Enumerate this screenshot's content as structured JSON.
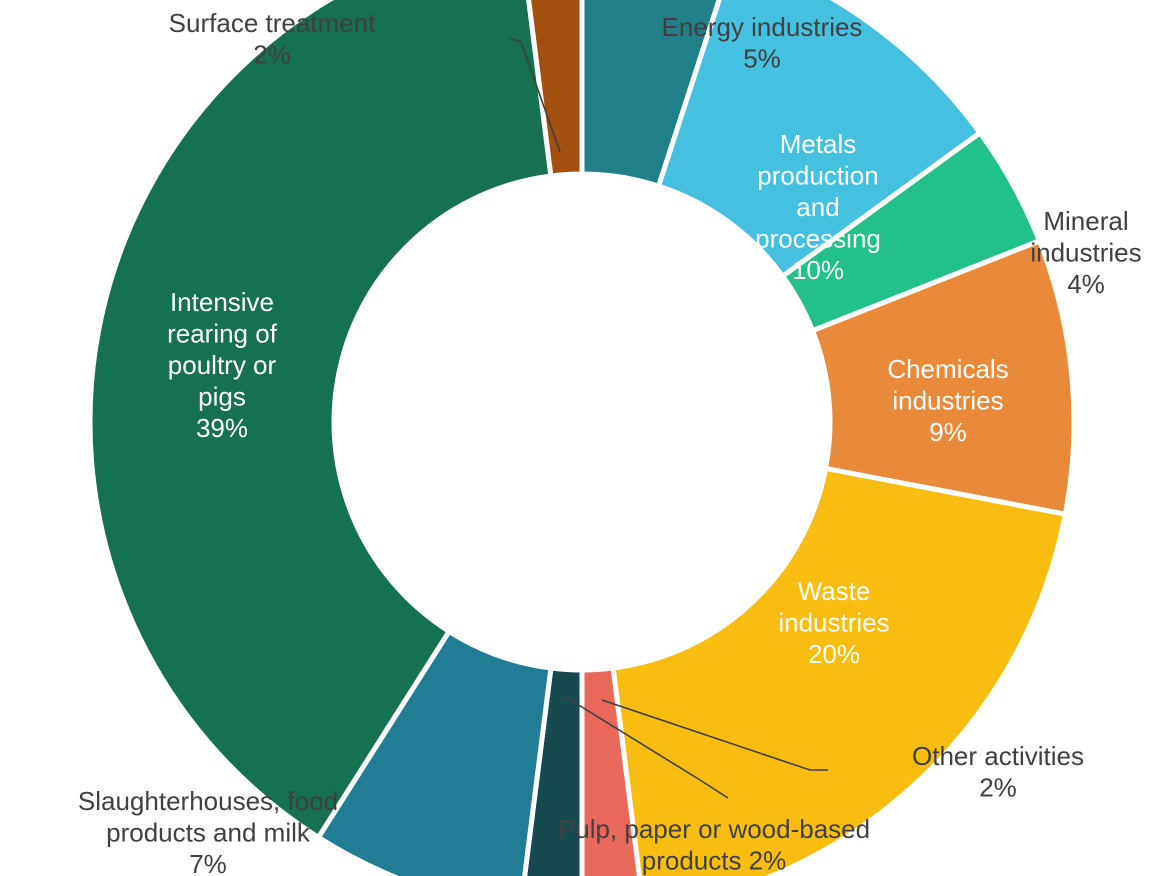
{
  "chart_data": {
    "type": "pie",
    "variant": "donut",
    "title": "",
    "legend": "none",
    "categories": [
      "Energy industries",
      "Metals production and processing",
      "Mineral industries",
      "Chemicals industries",
      "Waste industries",
      "Other activities",
      "Pulp, paper or wood-based products",
      "Slaughterhouses, food products and milk",
      "Intensive rearing of poultry or pigs",
      "Surface treatment"
    ],
    "values": [
      5,
      10,
      4,
      9,
      20,
      2,
      2,
      7,
      39,
      2
    ],
    "value_unit": "%",
    "colors": [
      "#218087",
      "#45c0e0",
      "#22c189",
      "#e98a3b",
      "#f9bd12",
      "#e8685a",
      "#164a4f",
      "#217d95",
      "#167150",
      "#a24f10"
    ],
    "slice_labels": [
      {
        "lines": [
          "Energy industries",
          "5%"
        ]
      },
      {
        "lines": [
          "Metals",
          "production",
          "and",
          "processing",
          "10%"
        ]
      },
      {
        "lines": [
          "Mineral",
          "industries",
          "4%"
        ]
      },
      {
        "lines": [
          "Chemicals",
          "industries",
          "9%"
        ]
      },
      {
        "lines": [
          "Waste",
          "industries",
          "20%"
        ]
      },
      {
        "lines": [
          "Other activities",
          "2%"
        ]
      },
      {
        "lines": [
          "Pulp, paper or wood-based",
          "products 2%"
        ]
      },
      {
        "lines": [
          "Slaughterhouses, food",
          "products and milk",
          "7%"
        ]
      },
      {
        "lines": [
          "Intensive",
          "rearing of",
          "poultry or",
          "pigs",
          "39%"
        ]
      },
      {
        "lines": [
          "Surface treatment",
          "2%"
        ]
      }
    ]
  }
}
